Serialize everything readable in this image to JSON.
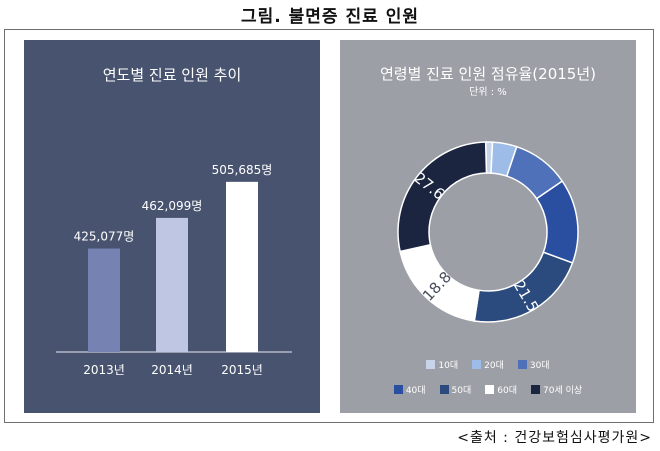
{
  "figure_title": "그림. 불면증 진료 인원",
  "source": "<출처 : 건강보험심사평가원>",
  "chart_data": [
    {
      "type": "bar",
      "title": "연도별 진료 인원 추이",
      "categories": [
        "2013년",
        "2014년",
        "2015년"
      ],
      "values": [
        425077,
        462099,
        505685
      ],
      "value_labels": [
        "425,077명",
        "462,099명",
        "505,685명"
      ],
      "bar_colors": [
        "#7683b2",
        "#bfc6e4",
        "#ffffff"
      ],
      "ylim": [
        300000,
        520000
      ]
    },
    {
      "type": "pie",
      "title": "연령별 진료 인원 점유율(2015년)",
      "unit": "단위 : %",
      "labels": [
        "10대",
        "20대",
        "30대",
        "40대",
        "50대",
        "60대",
        "70세 이상"
      ],
      "values": [
        1.2,
        4.3,
        10.1,
        14.9,
        21.5,
        18.8,
        27.6
      ],
      "value_labels": [
        "",
        "",
        "",
        "",
        "21.5",
        "18.8",
        "27.6"
      ],
      "colors": [
        "#c8d4ea",
        "#9dbde8",
        "#4f71b9",
        "#2a4ea0",
        "#2b4a7d",
        "#ffffff",
        "#1c2540"
      ]
    }
  ]
}
